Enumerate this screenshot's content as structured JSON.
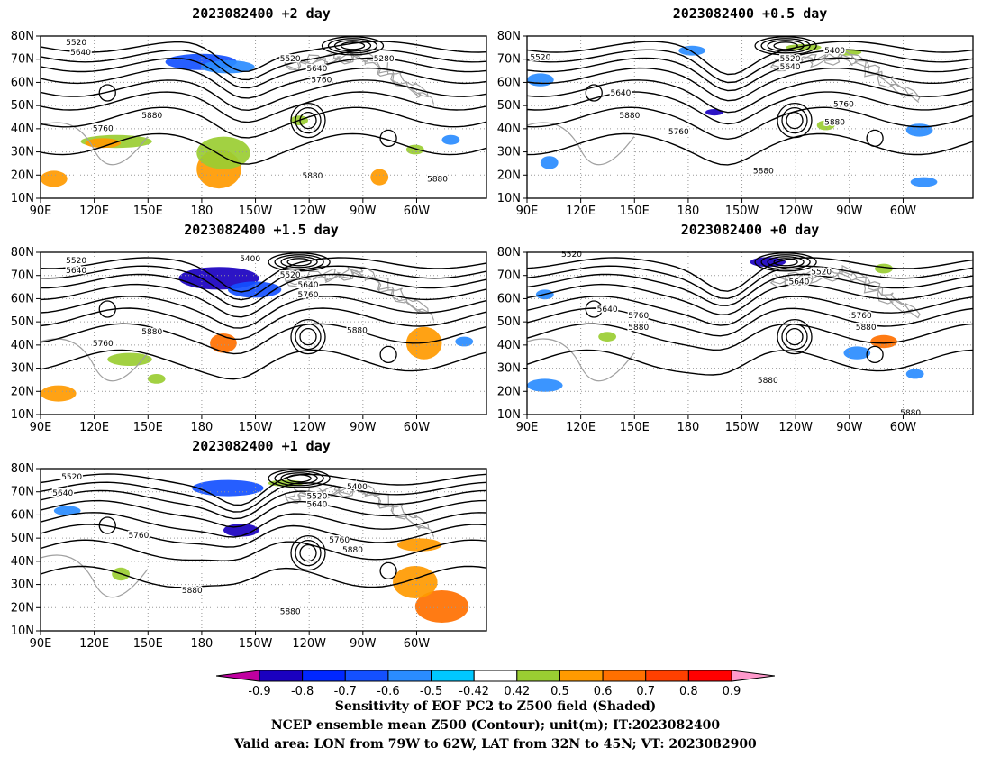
{
  "panels": [
    {
      "id": "p2",
      "title": "2023082400 +2 day",
      "labels": [
        "5520",
        "5640",
        "5760",
        "5880",
        "5280",
        "5520",
        "5640",
        "5760",
        "5880",
        "5880"
      ]
    },
    {
      "id": "p05",
      "title": "2023082400 +0.5 day",
      "labels": [
        "5520",
        "5400",
        "5520",
        "5640",
        "5640",
        "5760",
        "5880",
        "5760",
        "5880",
        "5880"
      ]
    },
    {
      "id": "p15",
      "title": "2023082400 +1.5 day",
      "labels": [
        "5520",
        "5640",
        "5400",
        "5520",
        "5640",
        "5760",
        "5760",
        "5880",
        "5880"
      ]
    },
    {
      "id": "p0",
      "title": "2023082400 +0 day",
      "labels": [
        "5520",
        "5520",
        "5640",
        "5640",
        "5760",
        "5880",
        "5760",
        "5880",
        "5880",
        "5880"
      ]
    },
    {
      "id": "p1",
      "title": "2023082400 +1 day",
      "labels": [
        "5520",
        "5640",
        "5400",
        "5520",
        "5640",
        "5760",
        "5760",
        "5880",
        "5880",
        "5880"
      ]
    }
  ],
  "axes": {
    "lat_labels": [
      "80N",
      "70N",
      "60N",
      "50N",
      "40N",
      "30N",
      "20N",
      "10N"
    ],
    "lon_labels": [
      "90E",
      "120E",
      "150E",
      "180",
      "150W",
      "120W",
      "90W",
      "60W"
    ]
  },
  "colorbar": {
    "ticks": [
      "-0.9",
      "-0.8",
      "-0.7",
      "-0.6",
      "-0.5",
      "-0.42",
      "0.42",
      "0.5",
      "0.6",
      "0.7",
      "0.8",
      "0.9"
    ],
    "colors": [
      "#1a00c0",
      "#0027ff",
      "#1450ff",
      "#2a8cff",
      "#00c8ff",
      "#ffffff",
      "#9acd32",
      "#ff9a00",
      "#ff7000",
      "#ff4000",
      "#ff0000"
    ],
    "low_end_color": "#c000a0",
    "high_end_color": "#ff99cc"
  },
  "footer": {
    "line1": "Sensitivity of EOF PC2 to Z500 field (Shaded)",
    "line2": "NCEP ensemble mean Z500 (Contour); unit(m); IT:2023082400",
    "line3": "Valid area: LON from 79W to 62W, LAT from 32N to 45N; VT: 2023082900"
  }
}
